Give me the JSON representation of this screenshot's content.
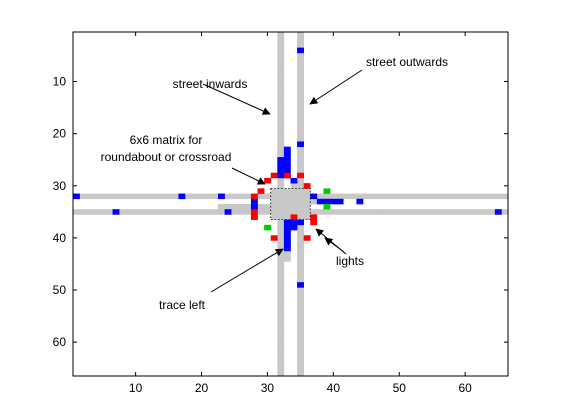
{
  "chart_data": {
    "type": "heatmap",
    "title": "",
    "xlabel": "",
    "ylabel": "",
    "xlim": [
      0.5,
      66.5
    ],
    "ylim": [
      66.5,
      0.5
    ],
    "xticks": [
      10,
      20,
      30,
      40,
      50,
      60
    ],
    "yticks": [
      10,
      20,
      30,
      40,
      50,
      60
    ],
    "grid": false,
    "colors": {
      "street": "#c8c8c8",
      "car": "#0000ff",
      "red_light": "#ff0000",
      "green_light": "#00cc00",
      "background": "#ffffff",
      "axes": "#000000"
    },
    "streets": [
      {
        "name": "vertical-left",
        "x": 32,
        "y_from": 1,
        "y_to": 66
      },
      {
        "name": "vertical-right",
        "x": 35,
        "y_from": 1,
        "y_to": 66
      },
      {
        "name": "horizontal-top",
        "y": 32,
        "x_from": 1,
        "x_to": 66
      },
      {
        "name": "horizontal-bottom",
        "y": 35,
        "x_from": 1,
        "x_to": 66
      }
    ],
    "intersection": {
      "x_from": 31,
      "x_to": 36,
      "y_from": 31,
      "y_to": 36
    },
    "extra_street_cells": [
      [
        23,
        34
      ],
      [
        24,
        34
      ],
      [
        25,
        34
      ],
      [
        26,
        34
      ],
      [
        27,
        34
      ],
      [
        28,
        34
      ],
      [
        29,
        34
      ],
      [
        30,
        34
      ],
      [
        33,
        37
      ],
      [
        33,
        38
      ],
      [
        33,
        39
      ],
      [
        33,
        40
      ],
      [
        33,
        41
      ],
      [
        33,
        42
      ],
      [
        33,
        43
      ],
      [
        33,
        44
      ],
      [
        34,
        29
      ],
      [
        34,
        30
      ],
      [
        37,
        33
      ],
      [
        38,
        33
      ],
      [
        39,
        33
      ],
      [
        40,
        33
      ],
      [
        41,
        33
      ]
    ],
    "cars": [
      [
        35,
        4
      ],
      [
        33,
        23
      ],
      [
        33,
        24
      ],
      [
        33,
        25
      ],
      [
        33,
        26
      ],
      [
        33,
        27
      ],
      [
        33,
        28
      ],
      [
        32,
        25
      ],
      [
        32,
        26
      ],
      [
        32,
        27
      ],
      [
        32,
        28
      ],
      [
        34,
        29
      ],
      [
        35,
        22
      ],
      [
        1,
        32
      ],
      [
        17,
        32
      ],
      [
        23,
        32
      ],
      [
        28,
        33
      ],
      [
        28,
        34
      ],
      [
        24,
        35
      ],
      [
        7,
        35
      ],
      [
        65,
        35
      ],
      [
        37,
        32
      ],
      [
        38,
        33
      ],
      [
        39,
        33
      ],
      [
        40,
        33
      ],
      [
        41,
        33
      ],
      [
        44,
        33
      ],
      [
        33,
        37
      ],
      [
        34,
        37
      ],
      [
        35,
        37
      ],
      [
        33,
        38
      ],
      [
        34,
        38
      ],
      [
        33,
        39
      ],
      [
        33,
        40
      ],
      [
        33,
        41
      ],
      [
        33,
        42
      ],
      [
        35,
        49
      ]
    ],
    "red_lights": [
      [
        30,
        29
      ],
      [
        31,
        28
      ],
      [
        33,
        28
      ],
      [
        35,
        28
      ],
      [
        36,
        30
      ],
      [
        29,
        31
      ],
      [
        28,
        32
      ],
      [
        28,
        35
      ],
      [
        28,
        36
      ],
      [
        37,
        36
      ],
      [
        37,
        37
      ],
      [
        34,
        36
      ],
      [
        36,
        40
      ],
      [
        31,
        40
      ]
    ],
    "green_lights": [
      [
        39,
        31
      ],
      [
        39,
        34
      ],
      [
        30,
        38
      ]
    ],
    "annotations": [
      {
        "text": "street inwards",
        "tx": 210,
        "ty": 88,
        "anchor": "middle",
        "ax": 203,
        "ay": 84,
        "hx": 270,
        "hy": 114
      },
      {
        "text": "street outwards",
        "tx": 407,
        "ty": 66,
        "anchor": "middle",
        "ax": 362,
        "ay": 70,
        "hx": 310,
        "hy": 104
      },
      {
        "text": "6x6 matrix for",
        "tx": 166,
        "ty": 144,
        "anchor": "middle"
      },
      {
        "text": "roundabout or crossroad",
        "tx": 166,
        "ty": 161,
        "anchor": "middle",
        "ax": 232,
        "ay": 168,
        "hx": 265,
        "hy": 184
      },
      {
        "text": "lights",
        "tx": 350,
        "ty": 265,
        "anchor": "middle",
        "ax": 346,
        "ay": 254,
        "hx": 316,
        "hy": 229
      },
      {
        "text": "",
        "tx": 0,
        "ty": 0,
        "anchor": "middle",
        "ax": 344,
        "ay": 252,
        "hx": 325,
        "hy": 238
      },
      {
        "text": "trace left",
        "tx": 182,
        "ty": 309,
        "anchor": "middle",
        "ax": 211,
        "ay": 292,
        "hx": 283,
        "hy": 249
      }
    ]
  }
}
